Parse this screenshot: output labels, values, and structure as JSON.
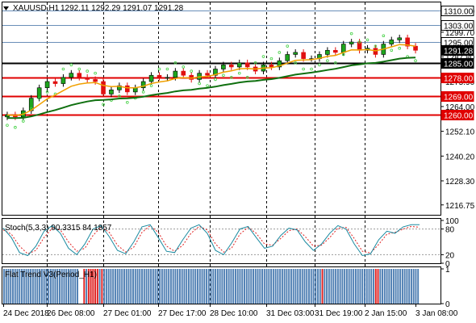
{
  "header": {
    "symbol": "XAUUSD,H1",
    "ohlc": "1292.11 1292.29 1291.07 1291.28",
    "dropdown_icon": "triangle-down-icon"
  },
  "colors": {
    "background": "#ffffff",
    "bull_candle": "#1ea51e",
    "bear_candle": "#e01010",
    "ma_fast": "#f0a000",
    "ma_slow": "#107010",
    "psar": "#40d040",
    "support_line": "#e00000",
    "resistance_line": "#6a8fb8",
    "stoch_main": "#1a8aa0",
    "stoch_signal": "#e02020",
    "trend_up": "#4f7fb3",
    "trend_down": "#e02020",
    "trend_flat": "#ffffff"
  },
  "chart_data": [
    {
      "panel": "price",
      "type": "candlestick",
      "ylim": [
        1212,
        1314
      ],
      "price_ticks": [
        "1310.00",
        "1299.70",
        "1287.80",
        "1275.90",
        "1264.00",
        "1252.10",
        "1240.20",
        "1228.30",
        "1216.75"
      ],
      "close_series": [
        1260,
        1259,
        1262,
        1268,
        1273,
        1276,
        1275,
        1278,
        1280,
        1278,
        1277,
        1276,
        1270,
        1272,
        1274,
        1271,
        1273,
        1276,
        1279,
        1278,
        1278,
        1281,
        1279,
        1277,
        1280,
        1279,
        1282,
        1284,
        1283,
        1285,
        1283,
        1281,
        1284,
        1283,
        1286,
        1289,
        1290,
        1287,
        1287,
        1289,
        1291,
        1290,
        1294,
        1295,
        1291,
        1292,
        1289,
        1294,
        1296,
        1297,
        1293,
        1291
      ],
      "horizontal_levels": [
        {
          "price": 1310.0,
          "label": "1310.00",
          "role": "resistance"
        },
        {
          "price": 1303.0,
          "label": "1303.00",
          "role": "resistance"
        },
        {
          "price": 1295.0,
          "label": "1295.00",
          "role": "resistance"
        },
        {
          "price": 1291.28,
          "label": "1291.28",
          "role": "current"
        },
        {
          "price": 1285.0,
          "label": "1285.00",
          "role": "pivot"
        },
        {
          "price": 1278.0,
          "label": "1278.00",
          "role": "support"
        },
        {
          "price": 1269.0,
          "label": "1269.00",
          "role": "support"
        },
        {
          "price": 1260.0,
          "label": "1260.00",
          "role": "support"
        }
      ]
    },
    {
      "panel": "stochastic",
      "type": "line",
      "label": "Stoch(5,3,3) 90.3315 84.1857",
      "ylim": [
        0,
        100
      ],
      "levels": [
        "100",
        "80",
        "20",
        "0"
      ],
      "main": [
        82,
        60,
        25,
        18,
        40,
        75,
        88,
        70,
        35,
        20,
        45,
        80,
        88,
        62,
        30,
        22,
        50,
        85,
        90,
        60,
        28,
        25,
        55,
        82,
        90,
        70,
        30,
        20,
        48,
        80,
        86,
        60,
        35,
        40,
        65,
        82,
        78,
        50,
        30,
        45,
        70,
        88,
        80,
        45,
        18,
        22,
        55,
        75,
        70,
        85,
        90,
        90
      ],
      "signal": [
        78,
        68,
        40,
        22,
        30,
        60,
        82,
        78,
        50,
        28,
        35,
        65,
        85,
        72,
        42,
        26,
        38,
        72,
        88,
        72,
        40,
        28,
        42,
        70,
        86,
        78,
        45,
        26,
        36,
        68,
        84,
        70,
        45,
        42,
        58,
        76,
        80,
        62,
        40,
        42,
        60,
        82,
        84,
        58,
        28,
        24,
        44,
        68,
        72,
        80,
        86,
        84
      ]
    },
    {
      "panel": "flat_trend",
      "type": "bar",
      "label": "Flat Trend V3(Period_H1)",
      "ylim": [
        0,
        1
      ],
      "levels": [
        "1",
        "0"
      ],
      "states": [
        "up",
        "up",
        "up",
        "up",
        "up",
        "up",
        "up",
        "up",
        "up",
        "up",
        "up",
        "up",
        "up",
        "up",
        "up",
        "up",
        "up",
        "up",
        "up",
        "up",
        "up",
        "up",
        "up",
        "up",
        "up",
        "up",
        "up",
        "up",
        "up",
        "up",
        "up",
        "up",
        "up",
        "up",
        "flat",
        "flat",
        "down",
        "up",
        "down",
        "down",
        "down",
        "down",
        "down",
        "up",
        "down",
        "up",
        "up",
        "up",
        "up",
        "up",
        "up",
        "up",
        "up",
        "up",
        "up",
        "up",
        "up",
        "up",
        "up",
        "up",
        "up",
        "up",
        "up",
        "up",
        "up",
        "up",
        "up",
        "up",
        "up",
        "up",
        "up",
        "up",
        "up",
        "up",
        "up",
        "up",
        "up",
        "up",
        "up",
        "up",
        "up",
        "up",
        "up",
        "up",
        "up",
        "up",
        "up",
        "up",
        "up",
        "up",
        "up",
        "up",
        "up",
        "up",
        "up",
        "up",
        "up",
        "up",
        "up",
        "up",
        "up",
        "up",
        "up",
        "up",
        "up",
        "up",
        "up",
        "up",
        "up",
        "up",
        "up",
        "up",
        "up",
        "up",
        "up",
        "up",
        "up",
        "up",
        "up",
        "up",
        "up",
        "up",
        "up",
        "up",
        "up",
        "up",
        "up",
        "up",
        "up",
        "up",
        "up",
        "up",
        "up",
        "up",
        "up",
        "up",
        "up",
        "up",
        "up",
        "up",
        "up",
        "up",
        "up",
        "down",
        "up",
        "up",
        "up",
        "up",
        "up",
        "up",
        "up",
        "up",
        "up",
        "up",
        "up",
        "up",
        "up",
        "up",
        "up",
        "up",
        "up",
        "up",
        "up",
        "up",
        "up",
        "up",
        "up",
        "down",
        "down",
        "up",
        "up",
        "up",
        "up",
        "up",
        "up",
        "up",
        "up",
        "up",
        "up",
        "up",
        "up",
        "up",
        "up",
        "up",
        "up",
        "up",
        "up"
      ]
    }
  ],
  "time_axis": [
    "24 Dec 2018",
    "26 Dec 08:00",
    "27 Dec 01:00",
    "27 Dec 17:00",
    "28 Dec 10:00",
    "31 Dec 03:00",
    "31 Dec 19:00",
    "2 Jan 15:00",
    "3 Jan 08:00"
  ]
}
